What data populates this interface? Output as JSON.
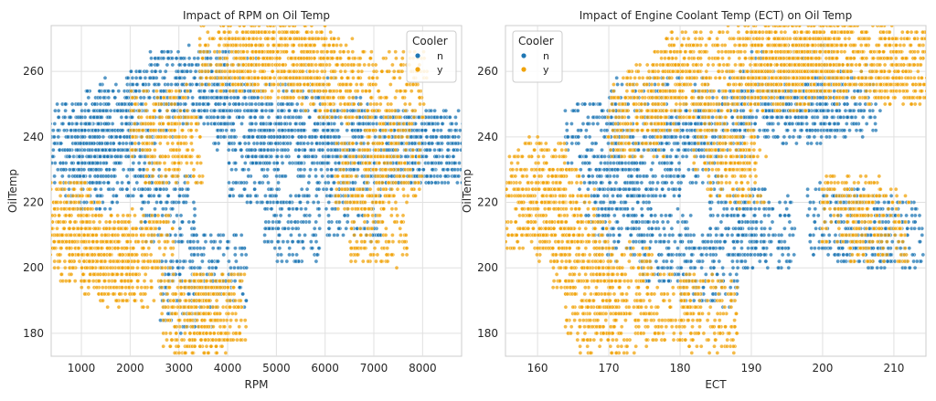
{
  "chart_data": [
    {
      "type": "scatter",
      "title": "Impact of RPM on Oil Temp",
      "xlabel": "RPM",
      "ylabel": "OilTemp",
      "xlim": [
        380,
        8800
      ],
      "ylim": [
        173,
        274
      ],
      "xticks": [
        1000,
        2000,
        3000,
        4000,
        5000,
        6000,
        7000,
        8000
      ],
      "yticks": [
        180,
        200,
        220,
        240,
        260
      ],
      "grid": true,
      "legend": {
        "title": "Cooler",
        "placement": "top-right",
        "entries": [
          "n",
          "y"
        ]
      },
      "series": [
        {
          "name": "n",
          "color": "#1f77b4",
          "approx_points": [
            [
              800,
              240
            ],
            [
              1000,
              236
            ],
            [
              1200,
              228
            ],
            [
              1500,
              244
            ],
            [
              1800,
              246
            ],
            [
              2100,
              232
            ],
            [
              2500,
              250
            ],
            [
              2800,
              218
            ],
            [
              3000,
              256
            ],
            [
              3200,
              192
            ],
            [
              3500,
              254
            ],
            [
              3800,
              200
            ],
            [
              4000,
              256
            ],
            [
              4300,
              246
            ],
            [
              4600,
              230
            ],
            [
              5000,
              240
            ],
            [
              5300,
              212
            ],
            [
              5600,
              250
            ],
            [
              6000,
              232
            ],
            [
              6300,
              242
            ],
            [
              6600,
              220
            ],
            [
              7000,
              238
            ],
            [
              7400,
              236
            ],
            [
              7800,
              237
            ],
            [
              8100,
              237
            ],
            [
              8300,
              237
            ]
          ]
        },
        {
          "name": "y",
          "color": "#f0a30a",
          "approx_points": [
            [
              600,
              216
            ],
            [
              800,
              210
            ],
            [
              1100,
              206
            ],
            [
              1500,
              202
            ],
            [
              1900,
              199
            ],
            [
              2300,
              206
            ],
            [
              2600,
              244
            ],
            [
              2900,
              236
            ],
            [
              3200,
              186
            ],
            [
              3500,
              184
            ],
            [
              3800,
              188
            ],
            [
              4000,
              266
            ],
            [
              4400,
              264
            ],
            [
              4800,
              270
            ],
            [
              5200,
              262
            ],
            [
              5600,
              266
            ],
            [
              6000,
              260
            ],
            [
              6400,
              255
            ],
            [
              6800,
              228
            ],
            [
              7100,
              212
            ],
            [
              7400,
              232
            ],
            [
              7500,
              255
            ]
          ]
        }
      ]
    },
    {
      "type": "scatter",
      "title": "Impact of Engine Coolant Temp (ECT) on Oil Temp",
      "xlabel": "ECT",
      "ylabel": "OilTemp",
      "xlim": [
        155.5,
        214.5
      ],
      "ylim": [
        173,
        274
      ],
      "xticks": [
        160,
        170,
        180,
        190,
        200,
        210
      ],
      "yticks": [
        180,
        200,
        220,
        240,
        260
      ],
      "grid": true,
      "legend": {
        "title": "Cooler",
        "placement": "top-left",
        "entries": [
          "n",
          "y"
        ]
      },
      "series": [
        {
          "name": "n",
          "color": "#1f77b4",
          "approx_points": [
            [
              168,
              240
            ],
            [
              170,
              225
            ],
            [
              172,
              214
            ],
            [
              174,
              246
            ],
            [
              176,
              232
            ],
            [
              178,
              206
            ],
            [
              180,
              248
            ],
            [
              182,
              236
            ],
            [
              184,
              200
            ],
            [
              186,
              244
            ],
            [
              188,
              214
            ],
            [
              190,
              250
            ],
            [
              192,
              210
            ],
            [
              194,
              256
            ],
            [
              196,
              248
            ],
            [
              198,
              258
            ],
            [
              200,
              252
            ],
            [
              202,
              214
            ],
            [
              204,
              250
            ],
            [
              206,
              212
            ],
            [
              210,
              210
            ]
          ]
        },
        {
          "name": "y",
          "color": "#f0a30a",
          "approx_points": [
            [
              158,
              216
            ],
            [
              160,
              228
            ],
            [
              162,
              220
            ],
            [
              164,
              212
            ],
            [
              166,
              204
            ],
            [
              168,
              190
            ],
            [
              170,
              180
            ],
            [
              172,
              196
            ],
            [
              174,
              244
            ],
            [
              176,
              252
            ],
            [
              178,
              188
            ],
            [
              180,
              256
            ],
            [
              182,
              262
            ],
            [
              184,
              186
            ],
            [
              186,
              240
            ],
            [
              188,
              230
            ],
            [
              190,
              262
            ],
            [
              192,
              266
            ],
            [
              194,
              258
            ],
            [
              196,
              268
            ],
            [
              198,
              264
            ],
            [
              200,
              268
            ],
            [
              202,
              262
            ],
            [
              204,
              218
            ],
            [
              206,
              266
            ],
            [
              208,
              212
            ],
            [
              210,
              260
            ],
            [
              212,
              262
            ]
          ]
        }
      ]
    }
  ]
}
